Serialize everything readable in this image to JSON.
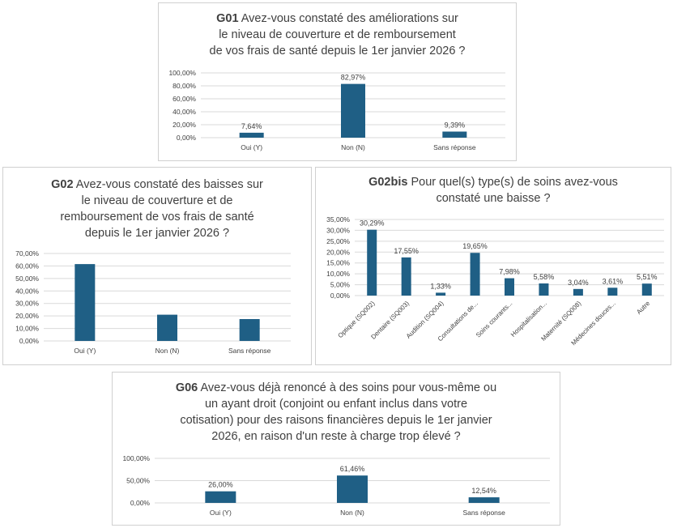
{
  "colors": {
    "bar": "#1f5f85",
    "grid": "#d9d9d9",
    "text": "#404040"
  },
  "chart_data": [
    {
      "id": "g01",
      "type": "bar",
      "title_code": "G01",
      "title_lines": [
        "Avez-vous constaté des améliorations sur",
        "le niveau de couverture et de remboursement",
        "de vos frais de santé depuis le 1er janvier 2026 ?"
      ],
      "categories": [
        "Oui (Y)",
        "Non (N)",
        "Sans réponse"
      ],
      "values": [
        7.64,
        82.97,
        9.39
      ],
      "data_labels": [
        "7,64%",
        "82,97%",
        "9,39%"
      ],
      "ylim": [
        0,
        100
      ],
      "yticks": [
        "0,00%",
        "20,00%",
        "40,00%",
        "60,00%",
        "80,00%",
        "100,00%"
      ],
      "grid": true
    },
    {
      "id": "g02",
      "type": "bar",
      "title_code": "G02",
      "title_lines": [
        "Avez-vous constaté des baisses sur",
        "le niveau de couverture et de",
        "remboursement de vos frais de santé",
        "depuis le 1er janvier 2026 ?"
      ],
      "categories": [
        "Oui (Y)",
        "Non (N)",
        "Sans réponse"
      ],
      "values": [
        61.5,
        21.0,
        17.5
      ],
      "data_labels": [],
      "ylim": [
        0,
        70
      ],
      "yticks": [
        "0,00%",
        "10,00%",
        "20,00%",
        "30,00%",
        "40,00%",
        "50,00%",
        "60,00%",
        "70,00%"
      ],
      "grid": true
    },
    {
      "id": "g02bis",
      "type": "bar",
      "title_code": "G02bis",
      "title_lines": [
        "Pour quel(s) type(s) de soins avez-vous",
        "constaté une baisse ?"
      ],
      "categories": [
        "Optique (SQ002)",
        "Dentaire (SQ003)",
        "Audition (SQ004)",
        "Consultations de...",
        "Soins courants...",
        "Hospitalisation...",
        "Maternité (SQ008)",
        "Médecines douces...",
        "Autre"
      ],
      "values": [
        30.29,
        17.55,
        1.33,
        19.65,
        7.98,
        5.58,
        3.04,
        3.61,
        5.51
      ],
      "data_labels": [
        "30,29%",
        "17,55%",
        "1,33%",
        "19,65%",
        "7,98%",
        "5,58%",
        "3,04%",
        "3,61%",
        "5,51%"
      ],
      "ylim": [
        0,
        35
      ],
      "yticks": [
        "0,00%",
        "5,00%",
        "10,00%",
        "15,00%",
        "20,00%",
        "25,00%",
        "30,00%",
        "35,00%"
      ],
      "grid": true
    },
    {
      "id": "g06",
      "type": "bar",
      "title_code": "G06",
      "title_lines": [
        "Avez-vous déjà renoncé à des soins pour vous-même ou",
        "un ayant droit (conjoint ou enfant inclus dans votre",
        "cotisation) pour des raisons financières depuis le 1er janvier",
        "2026, en raison d'un reste à charge trop élevé ?"
      ],
      "categories": [
        "Oui (Y)",
        "Non (N)",
        "Sans réponse"
      ],
      "values": [
        26.0,
        61.46,
        12.54
      ],
      "data_labels": [
        "26,00%",
        "61,46%",
        "12,54%"
      ],
      "ylim": [
        0,
        100
      ],
      "yticks": [
        "0,00%",
        "50,00%",
        "100,00%"
      ],
      "grid": true
    }
  ]
}
